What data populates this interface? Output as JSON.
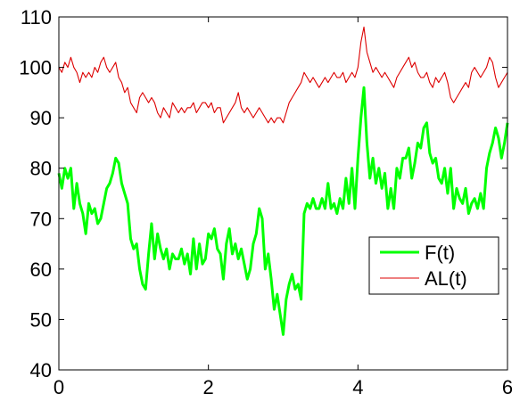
{
  "colors": {
    "f_series": "#00ff00",
    "al_series": "#dd0000",
    "axes": "#000000",
    "background": "#ffffff"
  },
  "chart_data": {
    "type": "line",
    "title": "",
    "xlabel": "",
    "ylabel": "",
    "xlim": [
      0,
      6
    ],
    "ylim": [
      40,
      110
    ],
    "x_ticks": [
      0,
      2,
      4,
      6
    ],
    "x_tick_labels": [
      "0",
      "2",
      "4",
      "6"
    ],
    "y_ticks": [
      40,
      50,
      60,
      70,
      80,
      90,
      100,
      110
    ],
    "y_tick_labels": [
      "40",
      "50",
      "60",
      "70",
      "80",
      "90",
      "100",
      "110"
    ],
    "grid": false,
    "legend_position": "center-right",
    "series": [
      {
        "name": "F(t)",
        "color": "#00ff00",
        "line_width": "thick",
        "x": [
          0,
          0.04,
          0.08,
          0.12,
          0.16,
          0.2,
          0.24,
          0.28,
          0.32,
          0.36,
          0.4,
          0.44,
          0.48,
          0.52,
          0.56,
          0.6,
          0.64,
          0.68,
          0.72,
          0.76,
          0.8,
          0.84,
          0.88,
          0.92,
          0.96,
          1.0,
          1.04,
          1.08,
          1.12,
          1.16,
          1.2,
          1.24,
          1.28,
          1.32,
          1.36,
          1.4,
          1.44,
          1.48,
          1.52,
          1.56,
          1.6,
          1.64,
          1.68,
          1.72,
          1.76,
          1.8,
          1.84,
          1.88,
          1.92,
          1.96,
          2.0,
          2.04,
          2.08,
          2.12,
          2.16,
          2.2,
          2.24,
          2.28,
          2.32,
          2.36,
          2.4,
          2.44,
          2.48,
          2.52,
          2.56,
          2.6,
          2.64,
          2.68,
          2.72,
          2.76,
          2.8,
          2.84,
          2.88,
          2.92,
          2.96,
          3.0,
          3.04,
          3.08,
          3.12,
          3.16,
          3.2,
          3.24,
          3.28,
          3.32,
          3.36,
          3.4,
          3.44,
          3.48,
          3.52,
          3.56,
          3.6,
          3.64,
          3.68,
          3.72,
          3.76,
          3.8,
          3.84,
          3.88,
          3.92,
          3.96,
          4.0,
          4.04,
          4.08,
          4.12,
          4.16,
          4.2,
          4.24,
          4.28,
          4.32,
          4.36,
          4.4,
          4.44,
          4.48,
          4.52,
          4.56,
          4.6,
          4.64,
          4.68,
          4.72,
          4.76,
          4.8,
          4.84,
          4.88,
          4.92,
          4.96,
          5.0,
          5.04,
          5.08,
          5.12,
          5.16,
          5.2,
          5.24,
          5.28,
          5.32,
          5.36,
          5.4,
          5.44,
          5.48,
          5.52,
          5.56,
          5.6,
          5.64,
          5.68,
          5.72,
          5.76,
          5.8,
          5.84,
          5.88,
          5.92,
          5.96,
          6.0
        ],
        "y": [
          79,
          76,
          80,
          78,
          80,
          72,
          77,
          73,
          71,
          67,
          73,
          71,
          72,
          69,
          70,
          73,
          76,
          77,
          79,
          82,
          81,
          77,
          75,
          73,
          66,
          64,
          65,
          60,
          57,
          56,
          63,
          69,
          62,
          67,
          64,
          62,
          64,
          60,
          63,
          62,
          62,
          64,
          61,
          63,
          59,
          66,
          60,
          65,
          61,
          62,
          67,
          66,
          68,
          64,
          63,
          58,
          65,
          68,
          63,
          65,
          62,
          64,
          61,
          58,
          60,
          65,
          67,
          72,
          70,
          60,
          63,
          58,
          52,
          55,
          51,
          47,
          54,
          57,
          59,
          56,
          57,
          54,
          71,
          73,
          72,
          74,
          72,
          72,
          74,
          72,
          77,
          72,
          73,
          71,
          74,
          72,
          78,
          73,
          80,
          72,
          82,
          90,
          96,
          85,
          78,
          82,
          77,
          80,
          76,
          79,
          72,
          76,
          72,
          80,
          78,
          82,
          82,
          84,
          78,
          81,
          85,
          84,
          88,
          89,
          83,
          81,
          82,
          78,
          77,
          80,
          75,
          80,
          72,
          76,
          74,
          73,
          76,
          71,
          73,
          74,
          72,
          75,
          72,
          80,
          83,
          85,
          88,
          86,
          82,
          85,
          89
        ]
      },
      {
        "name": "AL(t)",
        "color": "#dd0000",
        "line_width": "thin",
        "x": [
          0,
          0.04,
          0.08,
          0.12,
          0.16,
          0.2,
          0.24,
          0.28,
          0.32,
          0.36,
          0.4,
          0.44,
          0.48,
          0.52,
          0.56,
          0.6,
          0.64,
          0.68,
          0.72,
          0.76,
          0.8,
          0.84,
          0.88,
          0.92,
          0.96,
          1.0,
          1.04,
          1.08,
          1.12,
          1.16,
          1.2,
          1.24,
          1.28,
          1.32,
          1.36,
          1.4,
          1.44,
          1.48,
          1.52,
          1.56,
          1.6,
          1.64,
          1.68,
          1.72,
          1.76,
          1.8,
          1.84,
          1.88,
          1.92,
          1.96,
          2.0,
          2.04,
          2.08,
          2.12,
          2.16,
          2.2,
          2.24,
          2.28,
          2.32,
          2.36,
          2.4,
          2.44,
          2.48,
          2.52,
          2.56,
          2.6,
          2.64,
          2.68,
          2.72,
          2.76,
          2.8,
          2.84,
          2.88,
          2.92,
          2.96,
          3.0,
          3.04,
          3.08,
          3.12,
          3.16,
          3.2,
          3.24,
          3.28,
          3.32,
          3.36,
          3.4,
          3.44,
          3.48,
          3.52,
          3.56,
          3.6,
          3.64,
          3.68,
          3.72,
          3.76,
          3.8,
          3.84,
          3.88,
          3.92,
          3.96,
          4.0,
          4.04,
          4.08,
          4.12,
          4.16,
          4.2,
          4.24,
          4.28,
          4.32,
          4.36,
          4.4,
          4.44,
          4.48,
          4.52,
          4.56,
          4.6,
          4.64,
          4.68,
          4.72,
          4.76,
          4.8,
          4.84,
          4.88,
          4.92,
          4.96,
          5.0,
          5.04,
          5.08,
          5.12,
          5.16,
          5.2,
          5.24,
          5.28,
          5.32,
          5.36,
          5.4,
          5.44,
          5.48,
          5.52,
          5.56,
          5.6,
          5.64,
          5.68,
          5.72,
          5.76,
          5.8,
          5.84,
          5.88,
          5.92,
          5.96,
          6.0
        ],
        "y": [
          100,
          99,
          101,
          100,
          102,
          100,
          99,
          97,
          99,
          98,
          99,
          98,
          100,
          99,
          101,
          102,
          100,
          99,
          100,
          101,
          98,
          97,
          95,
          96,
          93,
          92,
          91,
          94,
          95,
          94,
          93,
          94,
          93,
          91,
          90,
          92,
          91,
          90,
          93,
          92,
          91,
          92,
          91,
          92,
          92,
          93,
          91,
          92,
          93,
          93,
          92,
          93,
          91,
          92,
          92,
          89,
          90,
          91,
          92,
          93,
          95,
          92,
          91,
          92,
          91,
          90,
          91,
          92,
          91,
          90,
          89,
          90,
          89,
          90,
          90,
          89,
          91,
          93,
          94,
          95,
          96,
          97,
          99,
          98,
          97,
          98,
          97,
          96,
          97,
          98,
          97,
          98,
          99,
          98,
          98,
          99,
          97,
          98,
          99,
          98,
          100,
          105,
          108,
          103,
          101,
          99,
          100,
          99,
          98,
          99,
          98,
          97,
          96,
          98,
          99,
          100,
          101,
          102,
          100,
          101,
          99,
          98,
          98,
          99,
          97,
          96,
          98,
          97,
          98,
          99,
          97,
          94,
          93,
          94,
          95,
          96,
          97,
          96,
          99,
          100,
          99,
          98,
          99,
          100,
          102,
          101,
          98,
          96,
          97,
          98,
          99
        ]
      }
    ]
  }
}
